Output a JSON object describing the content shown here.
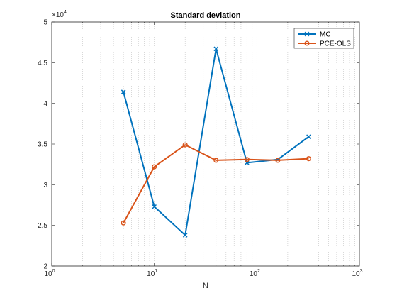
{
  "chart_data": {
    "type": "line",
    "title": "Standard deviation",
    "xlabel": "N",
    "ylabel": "",
    "xscale": "log",
    "xlim": [
      1,
      1000
    ],
    "ylim": [
      20000,
      50000
    ],
    "y_exponent_label": "×10",
    "y_exponent_power": "4",
    "xticks": [
      {
        "value": 1,
        "base": "10",
        "power": "0"
      },
      {
        "value": 10,
        "base": "10",
        "power": "1"
      },
      {
        "value": 100,
        "base": "10",
        "power": "2"
      },
      {
        "value": 1000,
        "base": "10",
        "power": "3"
      }
    ],
    "yticks": [
      {
        "value": 20000,
        "label": "2"
      },
      {
        "value": 25000,
        "label": "2.5"
      },
      {
        "value": 30000,
        "label": "3"
      },
      {
        "value": 35000,
        "label": "3.5"
      },
      {
        "value": 40000,
        "label": "4"
      },
      {
        "value": 45000,
        "label": "4.5"
      },
      {
        "value": 50000,
        "label": "5"
      }
    ],
    "grid": "x-minor-dotted",
    "legend_position": "top-right",
    "series": [
      {
        "name": "MC",
        "color": "#0072BD",
        "marker": "x",
        "x": [
          5,
          10,
          20,
          40,
          80,
          160,
          320
        ],
        "y": [
          41400,
          27300,
          23800,
          46700,
          32700,
          33100,
          35900
        ]
      },
      {
        "name": "PCE-OLS",
        "color": "#D95319",
        "marker": "o",
        "x": [
          5,
          10,
          20,
          40,
          80,
          160,
          320
        ],
        "y": [
          25300,
          32200,
          34900,
          33000,
          33100,
          33000,
          33200
        ]
      }
    ]
  }
}
